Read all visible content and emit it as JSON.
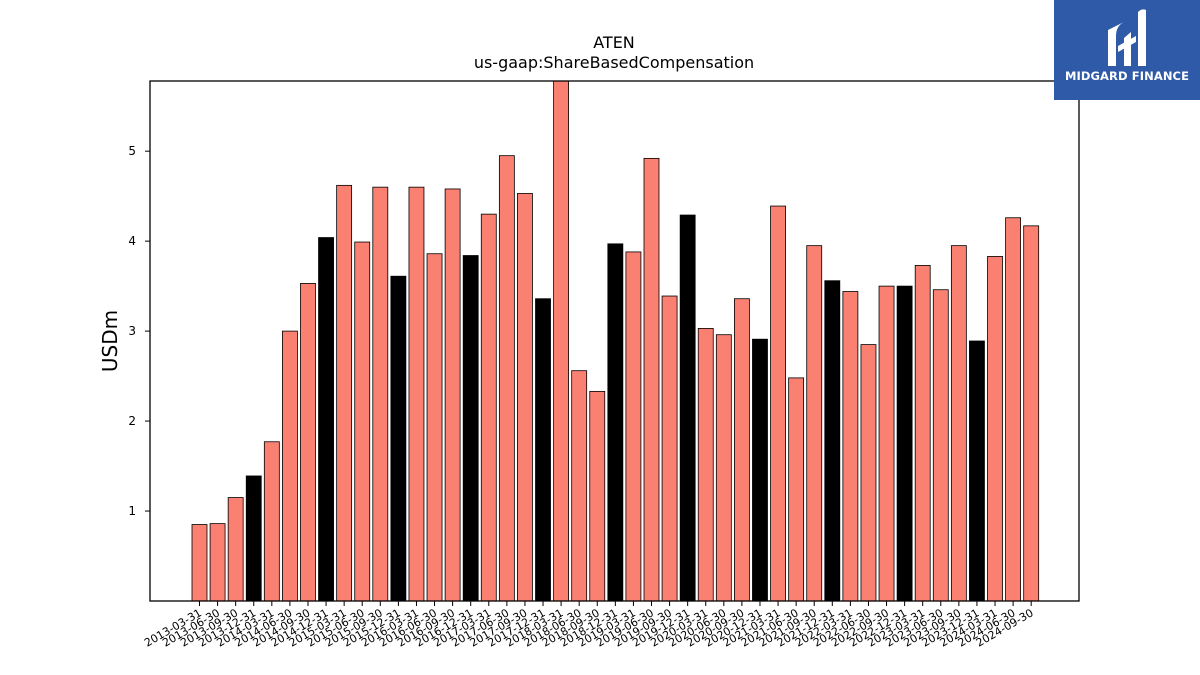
{
  "brand": {
    "name": "MIDGARD FINANCE",
    "colors": {
      "background": "#2f5aa8",
      "text": "#ffffff"
    },
    "icon": "midgard-logo-icon"
  },
  "chart_data": {
    "type": "bar",
    "title": "ATEN",
    "subtitle": "us-gaap:ShareBasedCompensation",
    "xlabel": "",
    "ylabel": "USDm",
    "ylim": [
      0,
      5.78
    ],
    "yticks": [
      1,
      2,
      3,
      4,
      5
    ],
    "grid": false,
    "colors": {
      "default": "#fa8072",
      "highlight": "#000000",
      "edge": "#000000"
    },
    "categories": [
      "2013-03-31",
      "2013-06-30",
      "2013-09-30",
      "2013-12-31",
      "2014-03-31",
      "2014-06-30",
      "2014-09-30",
      "2014-12-31",
      "2015-03-31",
      "2015-06-30",
      "2015-09-30",
      "2015-12-31",
      "2016-03-31",
      "2016-06-30",
      "2016-09-30",
      "2016-12-31",
      "2017-03-31",
      "2017-06-30",
      "2017-09-30",
      "2017-12-31",
      "2018-03-31",
      "2018-06-30",
      "2018-09-30",
      "2018-12-31",
      "2019-03-31",
      "2019-06-30",
      "2019-09-30",
      "2019-12-31",
      "2020-03-31",
      "2020-06-30",
      "2020-09-30",
      "2020-12-31",
      "2021-03-31",
      "2021-06-30",
      "2021-09-30",
      "2021-12-31",
      "2022-03-31",
      "2022-06-30",
      "2022-09-30",
      "2022-12-31",
      "2023-03-31",
      "2023-06-30",
      "2023-09-30",
      "2023-12-31",
      "2024-03-31",
      "2024-06-30",
      "2024-09-30"
    ],
    "values": [
      0.85,
      0.86,
      1.15,
      1.39,
      1.77,
      3.0,
      3.53,
      4.04,
      4.62,
      3.99,
      4.6,
      3.61,
      4.6,
      3.86,
      4.58,
      3.84,
      4.3,
      4.95,
      4.53,
      3.36,
      5.78,
      2.56,
      2.33,
      3.97,
      3.88,
      4.92,
      3.39,
      4.29,
      3.03,
      2.96,
      3.36,
      2.91,
      4.39,
      2.48,
      3.95,
      3.56,
      3.44,
      2.85,
      3.5,
      3.5,
      3.73,
      3.46,
      3.95,
      2.89,
      3.83,
      4.26,
      4.17
    ],
    "highlighted": [
      false,
      false,
      false,
      true,
      false,
      false,
      false,
      true,
      false,
      false,
      false,
      true,
      false,
      false,
      false,
      true,
      false,
      false,
      false,
      true,
      false,
      false,
      false,
      true,
      false,
      false,
      false,
      true,
      false,
      false,
      false,
      true,
      false,
      false,
      false,
      true,
      false,
      false,
      false,
      true,
      false,
      false,
      false,
      true,
      false,
      false,
      false
    ]
  }
}
